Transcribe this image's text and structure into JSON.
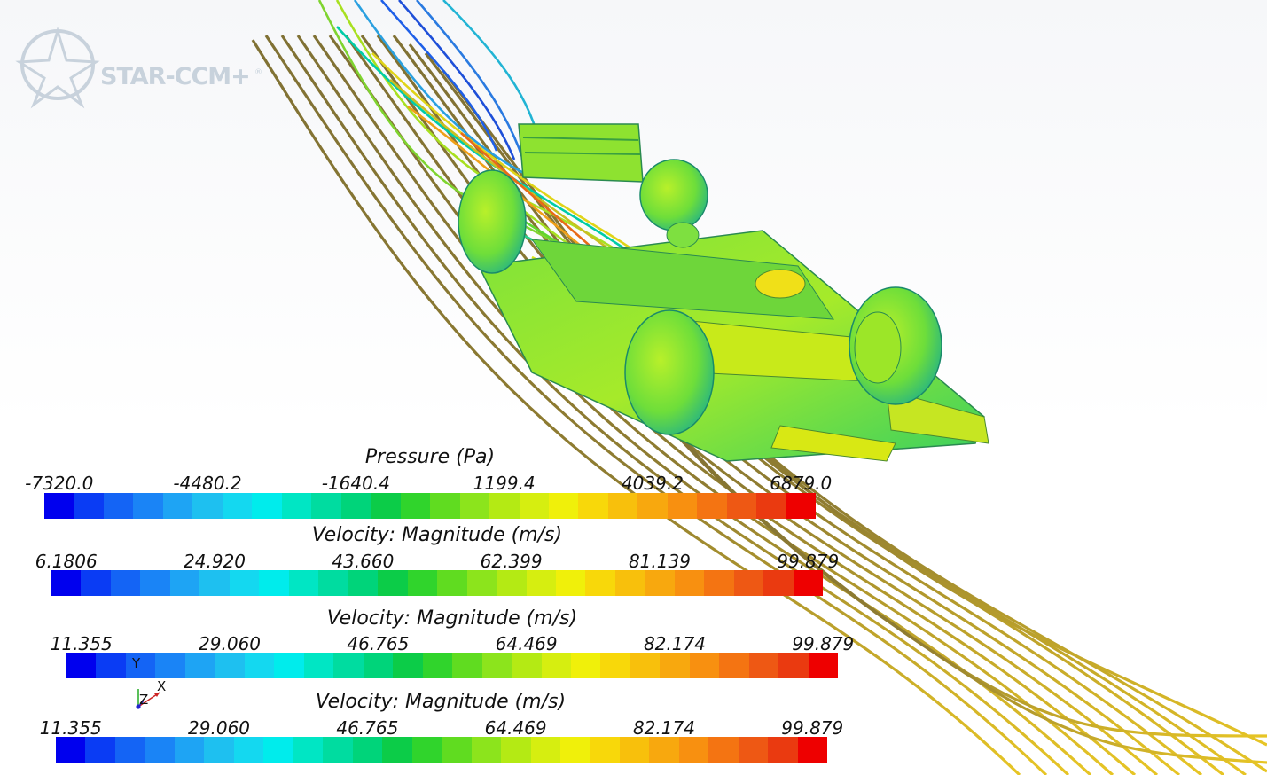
{
  "app": {
    "logo_text": "STAR-CCM+",
    "logo_mark": "®"
  },
  "axes": {
    "y": "Y",
    "x": "X",
    "z": "Z"
  },
  "colormap": [
    "#0000ee",
    "#0a3cf4",
    "#1464f5",
    "#1a84f6",
    "#1ea4f4",
    "#1ec0f0",
    "#14d8f0",
    "#00ecec",
    "#00e6c4",
    "#00dca0",
    "#00d47a",
    "#0ccc48",
    "#30d42c",
    "#60dc20",
    "#8ce41c",
    "#b4ea14",
    "#d6ee10",
    "#f0f00a",
    "#f8d80a",
    "#f8c00c",
    "#f8a80e",
    "#f89010",
    "#f47412",
    "#ee5814",
    "#ea3a10",
    "#ee0000"
  ],
  "legends": [
    {
      "title": "Pressure (Pa)",
      "ticks": [
        "-7320.0",
        "-4480.2",
        "-1640.4",
        "1199.4",
        "4039.2",
        "6879.0"
      ]
    },
    {
      "title": "Velocity: Magnitude (m/s)",
      "ticks": [
        "6.1806",
        "24.920",
        "43.660",
        "62.399",
        "81.139",
        "99.879"
      ]
    },
    {
      "title": "Velocity: Magnitude (m/s)",
      "ticks": [
        "11.355",
        "29.060",
        "46.765",
        "64.469",
        "82.174",
        "99.879"
      ]
    },
    {
      "title": "Velocity: Magnitude (m/s)",
      "ticks": [
        "11.355",
        "29.060",
        "46.765",
        "64.469",
        "82.174",
        "99.879"
      ]
    }
  ]
}
